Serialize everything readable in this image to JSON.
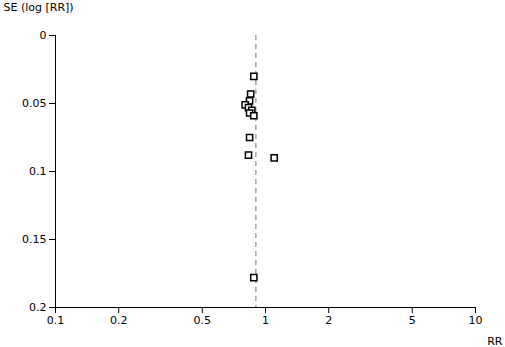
{
  "chart_data": {
    "type": "scatter",
    "x": [
      0.88,
      0.85,
      0.84,
      0.8,
      0.83,
      0.86,
      0.84,
      0.88,
      0.84,
      0.83,
      1.1,
      0.88
    ],
    "values": [
      0.03,
      0.043,
      0.048,
      0.051,
      0.053,
      0.055,
      0.057,
      0.059,
      0.075,
      0.088,
      0.09,
      0.178
    ],
    "xlabel": "RR",
    "ylabel": "SE (log [RR])",
    "log": "x",
    "xlim": [
      0.1,
      10
    ],
    "xticks": [
      0.1,
      0.2,
      0.5,
      1,
      2,
      5,
      10
    ],
    "ylim": [
      0.2,
      0
    ],
    "yticks": [
      0,
      0.05,
      0.1,
      0.15,
      0.2
    ],
    "marker": "square",
    "color": "#000000",
    "grid": false,
    "reference_lines": [
      {
        "x": 0.9,
        "color": "#888888",
        "line_style": "dashed"
      }
    ]
  }
}
